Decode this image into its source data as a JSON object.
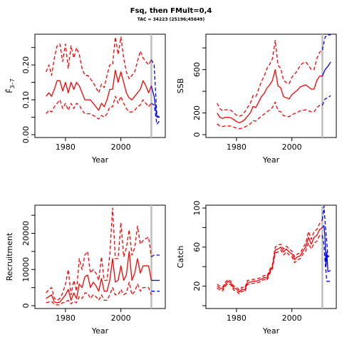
{
  "figure": {
    "title": "Fsq, then FMult=0,4",
    "subtitle": "TAC = 34223 (25196;45649)"
  },
  "colors": {
    "historic": "#ff0000",
    "projection": "#0000ff",
    "divider": "#bebebe",
    "axis": "#000000"
  },
  "chart_data": [
    {
      "id": "fbar",
      "type": "line",
      "title": "",
      "xlabel": "Year",
      "ylabel": "F̄",
      "ylabel_sub": "3–7",
      "xlim": [
        1970,
        2015
      ],
      "ylim": [
        0,
        0.28
      ],
      "xticks": [
        1980,
        2000
      ],
      "yticks": [
        0.0,
        0.1,
        0.2
      ],
      "ytick_labels": [
        "0.00",
        "0.10",
        "0.20"
      ],
      "yticks_minor": [
        0.05,
        0.15,
        0.25
      ],
      "divider_x": 2011,
      "historic": {
        "x": [
          1973,
          1974,
          1975,
          1976,
          1977,
          1978,
          1979,
          1980,
          1981,
          1982,
          1983,
          1984,
          1985,
          1986,
          1987,
          1988,
          1989,
          1990,
          1991,
          1992,
          1993,
          1994,
          1995,
          1996,
          1997,
          1998,
          1999,
          2000,
          2001,
          2002,
          2003,
          2004,
          2005,
          2006,
          2007,
          2008,
          2009,
          2010,
          2011
        ],
        "median": [
          0.11,
          0.12,
          0.11,
          0.13,
          0.155,
          0.155,
          0.125,
          0.15,
          0.12,
          0.15,
          0.13,
          0.15,
          0.14,
          0.12,
          0.1,
          0.1,
          0.1,
          0.09,
          0.08,
          0.07,
          0.09,
          0.08,
          0.1,
          0.13,
          0.13,
          0.185,
          0.15,
          0.18,
          0.15,
          0.12,
          0.105,
          0.1,
          0.11,
          0.12,
          0.13,
          0.155,
          0.14,
          0.12,
          0.14
        ],
        "upper": [
          0.18,
          0.2,
          0.17,
          0.22,
          0.255,
          0.26,
          0.21,
          0.26,
          0.19,
          0.255,
          0.22,
          0.25,
          0.23,
          0.19,
          0.17,
          0.17,
          0.16,
          0.15,
          0.135,
          0.12,
          0.145,
          0.135,
          0.17,
          0.2,
          0.2,
          0.28,
          0.23,
          0.28,
          0.22,
          0.18,
          0.16,
          0.17,
          0.18,
          0.21,
          0.24,
          0.22,
          0.21,
          0.2,
          0.215
        ],
        "lower": [
          0.06,
          0.07,
          0.065,
          0.08,
          0.09,
          0.1,
          0.075,
          0.09,
          0.07,
          0.09,
          0.075,
          0.09,
          0.085,
          0.07,
          0.06,
          0.06,
          0.06,
          0.055,
          0.05,
          0.045,
          0.055,
          0.05,
          0.06,
          0.08,
          0.08,
          0.11,
          0.09,
          0.11,
          0.09,
          0.075,
          0.065,
          0.065,
          0.07,
          0.08,
          0.085,
          0.1,
          0.09,
          0.08,
          0.09
        ]
      },
      "projection": {
        "x": [
          2011,
          2012,
          2013,
          2014
        ],
        "median": [
          0.14,
          0.11,
          0.05,
          0.05
        ],
        "upper": [
          0.215,
          0.2,
          0.055,
          0.05
        ],
        "lower": [
          0.09,
          0.085,
          0.03,
          0.04
        ]
      }
    },
    {
      "id": "ssb",
      "type": "line",
      "title": "",
      "xlabel": "Year",
      "ylabel": "SSB",
      "xlim": [
        1970,
        2015
      ],
      "ylim": [
        0,
        900
      ],
      "xticks": [
        1980,
        2000
      ],
      "yticks": [
        0,
        200,
        600
      ],
      "ytick_labels": [
        "0",
        "200",
        "600"
      ],
      "yticks_minor": [
        400,
        800
      ],
      "divider_x": 2011,
      "historic": {
        "x": [
          1973,
          1974,
          1975,
          1976,
          1977,
          1978,
          1979,
          1980,
          1981,
          1982,
          1983,
          1984,
          1985,
          1986,
          1987,
          1988,
          1989,
          1990,
          1991,
          1992,
          1993,
          1994,
          1995,
          1996,
          1997,
          1998,
          1999,
          2000,
          2001,
          2002,
          2003,
          2004,
          2005,
          2006,
          2007,
          2008,
          2009,
          2010,
          2011
        ],
        "median": [
          200,
          160,
          150,
          160,
          160,
          155,
          140,
          120,
          110,
          120,
          140,
          170,
          200,
          260,
          250,
          300,
          350,
          380,
          430,
          460,
          500,
          600,
          450,
          430,
          350,
          340,
          330,
          370,
          390,
          410,
          440,
          450,
          460,
          440,
          420,
          420,
          500,
          540,
          540
        ],
        "upper": [
          290,
          240,
          220,
          230,
          230,
          225,
          200,
          180,
          170,
          180,
          210,
          250,
          290,
          360,
          350,
          420,
          490,
          540,
          610,
          650,
          700,
          870,
          640,
          610,
          500,
          480,
          470,
          530,
          560,
          590,
          640,
          660,
          670,
          640,
          600,
          600,
          700,
          760,
          780
        ],
        "lower": [
          100,
          80,
          75,
          80,
          80,
          78,
          70,
          60,
          55,
          60,
          70,
          85,
          100,
          130,
          125,
          150,
          170,
          190,
          210,
          230,
          250,
          300,
          220,
          210,
          175,
          170,
          165,
          185,
          195,
          205,
          220,
          225,
          230,
          220,
          210,
          210,
          250,
          270,
          270
        ]
      },
      "projection": {
        "x": [
          2011,
          2012,
          2013,
          2014
        ],
        "median": [
          540,
          600,
          630,
          670
        ],
        "upper": [
          780,
          900,
          950,
          1000
        ],
        "lower": [
          270,
          330,
          340,
          360
        ]
      }
    },
    {
      "id": "recruitment",
      "type": "line",
      "title": "",
      "xlabel": "Year",
      "ylabel": "Recruitment",
      "xlim": [
        1970,
        2015
      ],
      "ylim": [
        0,
        27000
      ],
      "xticks": [
        1980,
        2000
      ],
      "yticks": [
        0,
        10000,
        20000
      ],
      "ytick_labels": [
        "0",
        "10000",
        "20000"
      ],
      "yticks_minor": [
        5000,
        15000,
        25000
      ],
      "divider_x": 2011,
      "historic": {
        "x": [
          1973,
          1974,
          1975,
          1976,
          1977,
          1978,
          1979,
          1980,
          1981,
          1982,
          1983,
          1984,
          1985,
          1986,
          1987,
          1988,
          1989,
          1990,
          1991,
          1992,
          1993,
          1994,
          1995,
          1996,
          1997,
          1998,
          1999,
          2000,
          2001,
          2002,
          2003,
          2004,
          2005,
          2006,
          2007,
          2008,
          2009,
          2010,
          2011
        ],
        "median": [
          2000,
          2500,
          3000,
          1000,
          800,
          1000,
          2000,
          3000,
          4500,
          1500,
          3500,
          2000,
          6000,
          5000,
          8000,
          8500,
          5000,
          6500,
          5500,
          4000,
          7500,
          4000,
          4000,
          7000,
          13000,
          6500,
          7000,
          11000,
          7000,
          8500,
          15000,
          7000,
          9000,
          13000,
          9000,
          11000,
          11000,
          11000,
          7000
        ],
        "upper": [
          3500,
          4500,
          5000,
          2000,
          1500,
          2000,
          3500,
          6000,
          10000,
          3000,
          7000,
          4000,
          13000,
          10000,
          14000,
          15000,
          9000,
          10000,
          9000,
          7000,
          13500,
          7000,
          7000,
          14000,
          27000,
          13000,
          13000,
          23000,
          13500,
          16000,
          21000,
          14000,
          16000,
          22000,
          17000,
          18000,
          18500,
          19000,
          13500
        ],
        "lower": [
          800,
          1000,
          1200,
          300,
          200,
          300,
          800,
          1000,
          1500,
          500,
          1200,
          800,
          2500,
          2000,
          3500,
          3500,
          2000,
          3000,
          2500,
          1500,
          3000,
          1500,
          1500,
          3000,
          5000,
          3000,
          3000,
          4500,
          3000,
          3500,
          6500,
          3000,
          4000,
          6000,
          4000,
          5000,
          5000,
          5000,
          3000
        ]
      },
      "projection": {
        "x": [
          2011,
          2012,
          2013,
          2014
        ],
        "median": [
          7000,
          7000,
          7000,
          7000
        ],
        "upper": [
          13500,
          14000,
          14000,
          14000
        ],
        "lower": [
          4000,
          4000,
          4000,
          4000
        ]
      }
    },
    {
      "id": "catch",
      "type": "line",
      "title": "",
      "xlabel": "Year",
      "ylabel": "Catch",
      "xlim": [
        1970,
        2015
      ],
      "ylim": [
        0,
        100
      ],
      "xticks": [
        1980,
        2000
      ],
      "yticks": [
        20,
        60,
        100
      ],
      "ytick_labels": [
        "20",
        "60",
        "100"
      ],
      "yticks_minor": [
        0,
        40,
        80
      ],
      "divider_x": 2011,
      "historic": {
        "x": [
          1973,
          1974,
          1975,
          1976,
          1977,
          1978,
          1979,
          1980,
          1981,
          1982,
          1983,
          1984,
          1985,
          1986,
          1987,
          1988,
          1989,
          1990,
          1991,
          1992,
          1993,
          1994,
          1995,
          1996,
          1997,
          1998,
          1999,
          2000,
          2001,
          2002,
          2003,
          2004,
          2005,
          2006,
          2007,
          2008,
          2009,
          2010,
          2011
        ],
        "median": [
          20,
          18,
          17,
          22,
          25,
          23,
          18,
          17,
          14,
          17,
          16,
          24,
          24,
          25,
          25,
          26,
          27,
          29,
          28,
          35,
          40,
          57,
          58,
          60,
          55,
          58,
          55,
          53,
          47,
          50,
          51,
          56,
          60,
          70,
          63,
          70,
          72,
          78,
          80
        ],
        "upper": [
          22,
          20,
          19,
          24,
          27,
          25,
          20,
          19,
          16,
          19,
          18,
          26,
          26,
          27,
          27,
          28,
          29,
          31,
          30,
          37,
          42,
          60,
          62,
          63,
          58,
          61,
          58,
          56,
          50,
          53,
          54,
          59,
          64,
          76,
          68,
          76,
          78,
          84,
          88
        ],
        "lower": [
          18,
          16,
          15,
          20,
          23,
          21,
          16,
          15,
          12,
          15,
          14,
          22,
          22,
          23,
          23,
          24,
          25,
          27,
          26,
          33,
          38,
          54,
          55,
          57,
          52,
          55,
          52,
          50,
          44,
          47,
          48,
          53,
          56,
          64,
          58,
          64,
          66,
          72,
          72
        ]
      },
      "projection": {
        "x": [
          2011,
          2011.6,
          2012,
          2012.3,
          2012.6,
          2013,
          2014
        ],
        "median": [
          80,
          82,
          68,
          40,
          55,
          35,
          36
        ],
        "upper": [
          88,
          102,
          85,
          75,
          65,
          50,
          52
        ],
        "lower": [
          72,
          62,
          44,
          35,
          25,
          25,
          25
        ]
      }
    }
  ]
}
